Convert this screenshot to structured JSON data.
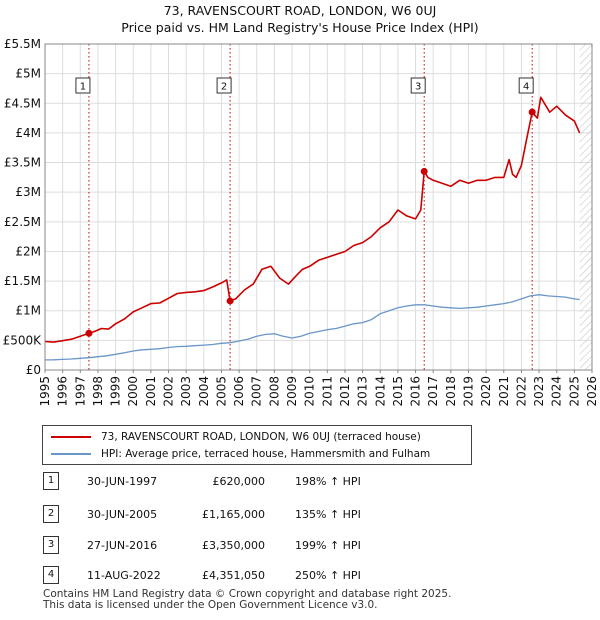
{
  "title": "73, RAVENSCOURT ROAD, LONDON, W6 0UJ",
  "subtitle": "Price paid vs. HM Land Registry's House Price Index (HPI)",
  "colors": {
    "property": "#cc0000",
    "hpi": "#6a96c8",
    "sale_marker": "#cc0000",
    "grid": "#dddddd"
  },
  "chart_data": {
    "type": "line",
    "title": "73, RAVENSCOURT ROAD, LONDON, W6 0UJ",
    "subtitle": "Price paid vs. HM Land Registry's House Price Index (HPI)",
    "xlabel": "",
    "ylabel": "",
    "xlim": [
      1995,
      2026
    ],
    "ylim": [
      0,
      5500000
    ],
    "grid": true,
    "y_ticks": [
      0,
      500000,
      1000000,
      1500000,
      2000000,
      2500000,
      3000000,
      3500000,
      4000000,
      4500000,
      5000000,
      5500000
    ],
    "y_tick_labels": [
      "£0",
      "£500K",
      "£1M",
      "£1.5M",
      "£2M",
      "£2.5M",
      "£3M",
      "£3.5M",
      "£4M",
      "£4.5M",
      "£5M",
      "£5.5M"
    ],
    "x_ticks": [
      1995,
      1996,
      1997,
      1998,
      1999,
      2000,
      2001,
      2002,
      2003,
      2004,
      2005,
      2006,
      2007,
      2008,
      2009,
      2010,
      2011,
      2012,
      2013,
      2014,
      2015,
      2016,
      2017,
      2018,
      2019,
      2020,
      2021,
      2022,
      2023,
      2024,
      2025,
      2026
    ],
    "x_tick_labels": [
      "1995",
      "1996",
      "1997",
      "1998",
      "1999",
      "2000",
      "2001",
      "2002",
      "2003",
      "2004",
      "2005",
      "2006",
      "2007",
      "2008",
      "2009",
      "2010",
      "2011",
      "2012",
      "2013",
      "2014",
      "2015",
      "2016",
      "2017",
      "2018",
      "2019",
      "2020",
      "2021",
      "2022",
      "2023",
      "2024",
      "2025",
      "2026"
    ],
    "forecast_start": 2025.3,
    "series": [
      {
        "name": "73, RAVENSCOURT ROAD, LONDON, W6 0UJ (terraced house)",
        "x": [
          1995.0,
          1995.5,
          1996.0,
          1996.5,
          1997.0,
          1997.49,
          1997.8,
          1998.2,
          1998.6,
          1999.0,
          1999.5,
          2000.0,
          2000.5,
          2001.0,
          2001.5,
          2002.0,
          2002.5,
          2003.0,
          2003.5,
          2004.0,
          2004.5,
          2005.0,
          2005.3,
          2005.49,
          2005.8,
          2006.3,
          2006.8,
          2007.3,
          2007.8,
          2008.3,
          2008.8,
          2009.2,
          2009.6,
          2010.0,
          2010.5,
          2011.0,
          2011.5,
          2012.0,
          2012.5,
          2013.0,
          2013.5,
          2014.0,
          2014.5,
          2015.0,
          2015.5,
          2016.0,
          2016.3,
          2016.49,
          2016.7,
          2017.0,
          2017.5,
          2018.0,
          2018.5,
          2019.0,
          2019.5,
          2020.0,
          2020.5,
          2021.0,
          2021.3,
          2021.5,
          2021.7,
          2022.0,
          2022.3,
          2022.61,
          2022.9,
          2023.1,
          2023.3,
          2023.6,
          2024.0,
          2024.5,
          2025.0,
          2025.3
        ],
        "values": [
          480000,
          470000,
          495000,
          520000,
          570000,
          620000,
          650000,
          700000,
          690000,
          780000,
          860000,
          980000,
          1050000,
          1120000,
          1130000,
          1210000,
          1290000,
          1310000,
          1320000,
          1340000,
          1400000,
          1470000,
          1520000,
          1165000,
          1200000,
          1350000,
          1450000,
          1700000,
          1750000,
          1550000,
          1450000,
          1580000,
          1700000,
          1750000,
          1850000,
          1900000,
          1950000,
          2000000,
          2100000,
          2150000,
          2250000,
          2400000,
          2500000,
          2700000,
          2600000,
          2550000,
          2700000,
          3350000,
          3250000,
          3200000,
          3150000,
          3100000,
          3200000,
          3150000,
          3200000,
          3200000,
          3250000,
          3250000,
          3550000,
          3300000,
          3250000,
          3450000,
          3900000,
          4351050,
          4250000,
          4600000,
          4500000,
          4350000,
          4450000,
          4300000,
          4200000,
          4000000
        ]
      },
      {
        "name": "HPI: Average price, terraced house, Hammersmith and Fulham",
        "x": [
          1995.0,
          1995.5,
          1996.0,
          1996.5,
          1997.0,
          1997.5,
          1998.0,
          1998.5,
          1999.0,
          1999.5,
          2000.0,
          2000.5,
          2001.0,
          2001.5,
          2002.0,
          2002.5,
          2003.0,
          2003.5,
          2004.0,
          2004.5,
          2005.0,
          2005.5,
          2006.0,
          2006.5,
          2007.0,
          2007.5,
          2008.0,
          2008.5,
          2009.0,
          2009.5,
          2010.0,
          2010.5,
          2011.0,
          2011.5,
          2012.0,
          2012.5,
          2013.0,
          2013.5,
          2014.0,
          2014.5,
          2015.0,
          2015.5,
          2016.0,
          2016.5,
          2017.0,
          2017.5,
          2018.0,
          2018.5,
          2019.0,
          2019.5,
          2020.0,
          2020.5,
          2021.0,
          2021.5,
          2022.0,
          2022.5,
          2023.0,
          2023.5,
          2024.0,
          2024.5,
          2025.0,
          2025.3
        ],
        "values": [
          170000,
          172000,
          178000,
          185000,
          198000,
          208000,
          225000,
          240000,
          265000,
          290000,
          320000,
          340000,
          350000,
          360000,
          380000,
          395000,
          400000,
          410000,
          420000,
          430000,
          450000,
          460000,
          490000,
          520000,
          570000,
          600000,
          610000,
          570000,
          540000,
          570000,
          620000,
          650000,
          680000,
          700000,
          740000,
          780000,
          800000,
          850000,
          950000,
          1000000,
          1050000,
          1080000,
          1100000,
          1100000,
          1080000,
          1060000,
          1050000,
          1040000,
          1050000,
          1060000,
          1080000,
          1100000,
          1120000,
          1150000,
          1200000,
          1250000,
          1270000,
          1250000,
          1240000,
          1230000,
          1200000,
          1190000
        ]
      }
    ],
    "sales": [
      {
        "num": "1",
        "x": 1997.49,
        "value": 620000
      },
      {
        "num": "2",
        "x": 2005.49,
        "value": 1165000
      },
      {
        "num": "3",
        "x": 2016.49,
        "value": 3350000
      },
      {
        "num": "4",
        "x": 2022.61,
        "value": 4351050
      }
    ]
  },
  "legend": {
    "property": "73, RAVENSCOURT ROAD, LONDON, W6 0UJ (terraced house)",
    "hpi": "HPI: Average price, terraced house, Hammersmith and Fulham"
  },
  "sales_table": [
    {
      "num": "1",
      "date": "30-JUN-1997",
      "price": "£620,000",
      "hpi": "198% ↑ HPI"
    },
    {
      "num": "2",
      "date": "30-JUN-2005",
      "price": "£1,165,000",
      "hpi": "135% ↑ HPI"
    },
    {
      "num": "3",
      "date": "27-JUN-2016",
      "price": "£3,350,000",
      "hpi": "199% ↑ HPI"
    },
    {
      "num": "4",
      "date": "11-AUG-2022",
      "price": "£4,351,050",
      "hpi": "250% ↑ HPI"
    }
  ],
  "footer": {
    "line1": "Contains HM Land Registry data © Crown copyright and database right 2025.",
    "line2": "This data is licensed under the Open Government Licence v3.0."
  }
}
